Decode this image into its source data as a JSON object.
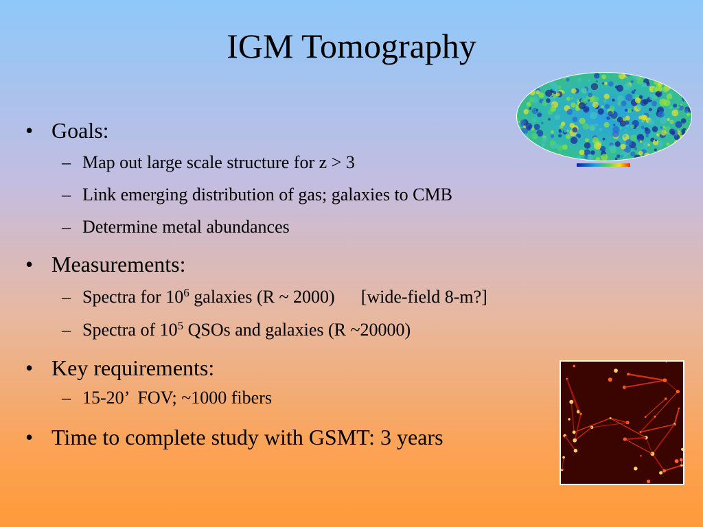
{
  "header": {
    "title": "IGM Tomography"
  },
  "bullets": [
    {
      "text": "Goals:",
      "items": [
        {
          "pre": "Map out large scale structure for z > 3"
        },
        {
          "pre": "Link emerging distribution of gas; galaxies to CMB"
        },
        {
          "pre": "Determine metal abundances"
        }
      ]
    },
    {
      "text": "Measurements:",
      "items": [
        {
          "pre": "Spectra for 10",
          "sup": "6",
          "post": " galaxies (R ~ 2000)",
          "note": "[wide-field 8-m?]"
        },
        {
          "pre": "Spectra of 10",
          "sup": "5",
          "post": " QSOs and galaxies (R ~20000)"
        }
      ]
    },
    {
      "text": "Key requirements:",
      "items": [
        {
          "pre": "15-20’  FOV; ~1000 fibers"
        }
      ]
    },
    {
      "text": "Time to complete study with GSMT: 3 years",
      "items": []
    }
  ]
}
